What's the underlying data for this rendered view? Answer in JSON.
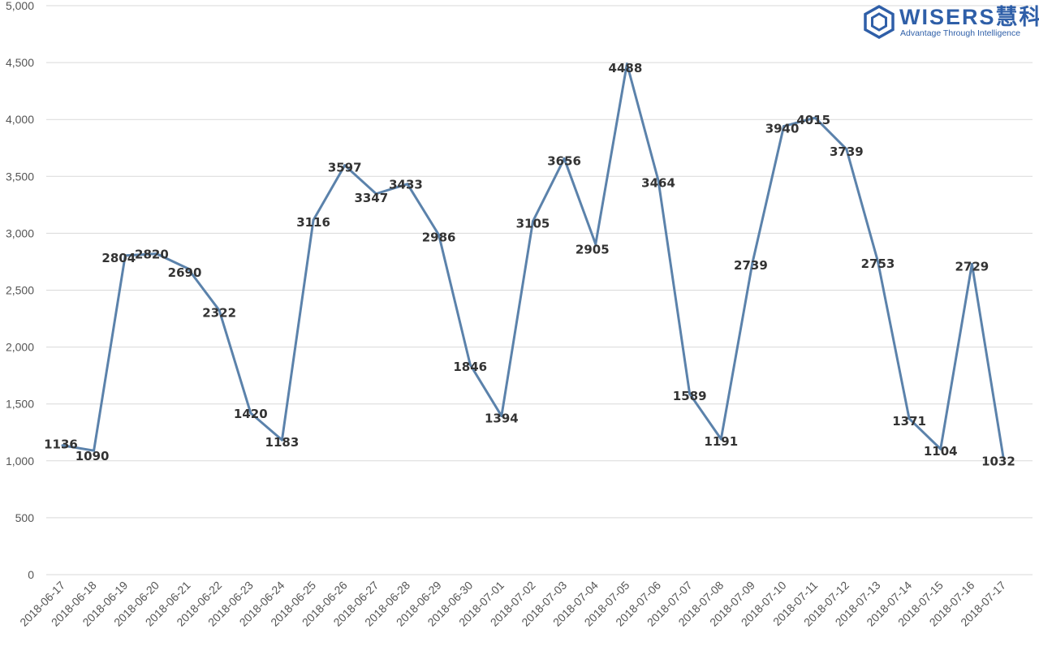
{
  "chart_data": {
    "type": "line",
    "x": [
      "2018-06-17",
      "2018-06-18",
      "2018-06-19",
      "2018-06-20",
      "2018-06-21",
      "2018-06-22",
      "2018-06-23",
      "2018-06-24",
      "2018-06-25",
      "2018-06-26",
      "2018-06-27",
      "2018-06-28",
      "2018-06-29",
      "2018-06-30",
      "2018-07-01",
      "2018-07-02",
      "2018-07-03",
      "2018-07-04",
      "2018-07-05",
      "2018-07-06",
      "2018-07-07",
      "2018-07-08",
      "2018-07-09",
      "2018-07-10",
      "2018-07-11",
      "2018-07-12",
      "2018-07-13",
      "2018-07-14",
      "2018-07-15",
      "2018-07-16",
      "2018-07-17"
    ],
    "series": [
      {
        "values": [
          1136,
          1090,
          2804,
          2820,
          2690,
          2322,
          1420,
          1183,
          3116,
          3597,
          3347,
          3433,
          2986,
          1846,
          1394,
          3105,
          3656,
          2905,
          4488,
          3464,
          1589,
          1191,
          2739,
          3940,
          4015,
          3739,
          2753,
          1371,
          1104,
          2729,
          1032
        ]
      }
    ],
    "yticks": [
      "0",
      "500",
      "1,000",
      "1,500",
      "2,000",
      "2,500",
      "3,000",
      "3,500",
      "4,000",
      "4,500",
      "5,000"
    ],
    "ylim": [
      0,
      5000
    ],
    "grid": true,
    "line_color": "#5b82ab",
    "grid_color": "#d9d9d9"
  },
  "logo": {
    "name": "WISERS慧科",
    "tagline": "Advantage Through Intelligence",
    "icon": "hexagon-logo-icon",
    "color": "#2f5fa8"
  }
}
